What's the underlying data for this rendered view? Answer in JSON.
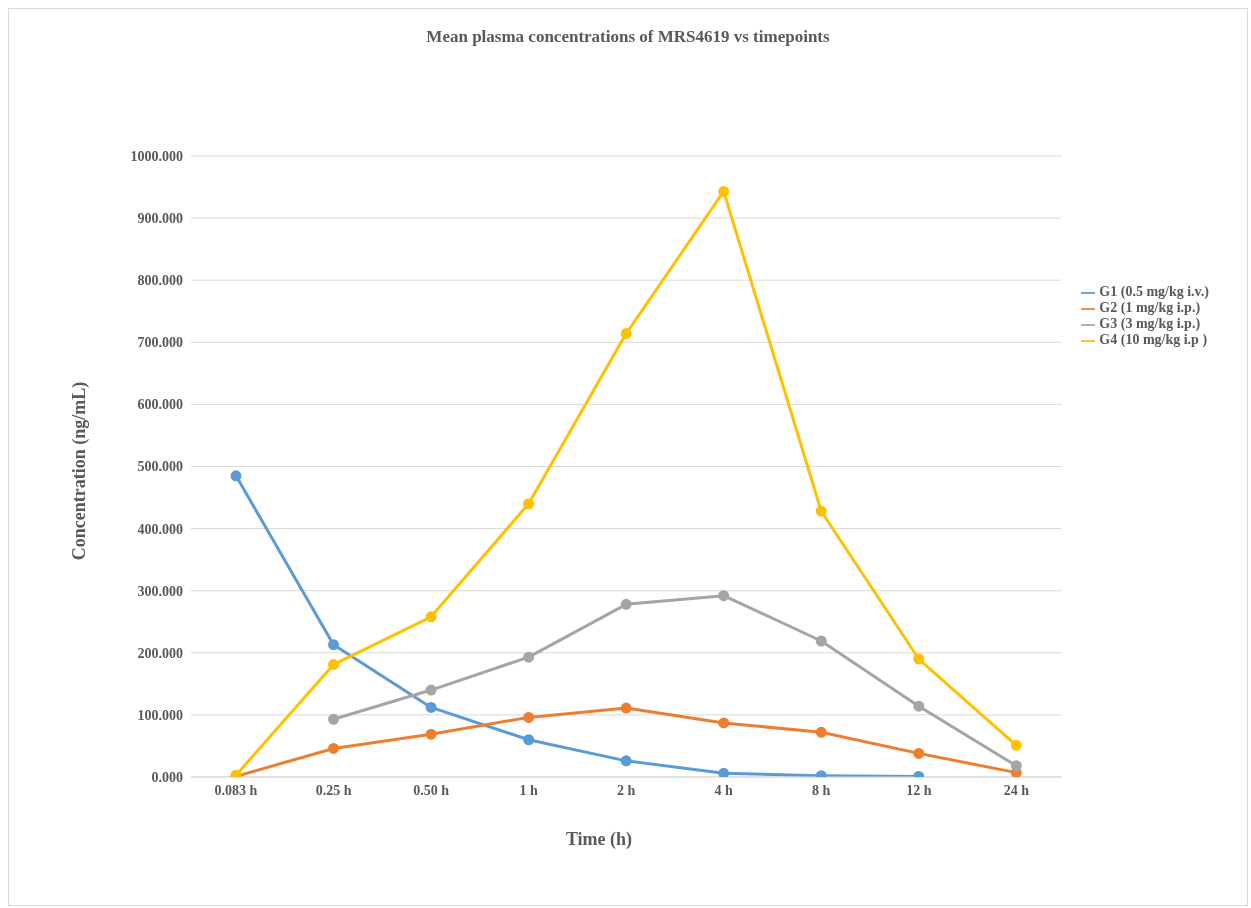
{
  "chart_data": {
    "type": "line",
    "title": "Mean plasma concentrations of MRS4619 vs timepoints",
    "xlabel": "Time (h)",
    "ylabel": "Concentration (ng/mL)",
    "categories": [
      "0.083 h",
      "0.25 h",
      "0.50 h",
      "1 h",
      "2 h",
      "4 h",
      "8 h",
      "12 h",
      "24 h"
    ],
    "series": [
      {
        "name": "G1 (0.5 mg/kg i.v.)",
        "color": "#5b9bd5",
        "values": [
          485,
          213,
          112,
          60,
          26,
          6,
          2,
          1,
          null
        ]
      },
      {
        "name": "G2 (1 mg/kg i.p.)",
        "color": "#ed7d31",
        "values": [
          1,
          46,
          69,
          96,
          111,
          87,
          72,
          38,
          7
        ]
      },
      {
        "name": "G3 (3 mg/kg i.p.)",
        "color": "#a5a5a5",
        "values": [
          null,
          93,
          140,
          193,
          278,
          292,
          219,
          114,
          18
        ]
      },
      {
        "name": "G4 (10 mg/kg i.p )",
        "color": "#ffc000",
        "values": [
          3,
          181,
          258,
          440,
          714,
          943,
          428,
          190,
          51
        ]
      }
    ],
    "ylim": [
      0,
      1000
    ],
    "yticks": [
      {
        "value": 0,
        "label": "0.000"
      },
      {
        "value": 100,
        "label": "100.000"
      },
      {
        "value": 200,
        "label": "200.000"
      },
      {
        "value": 300,
        "label": "300.000"
      },
      {
        "value": 400,
        "label": "400.000"
      },
      {
        "value": 500,
        "label": "500.000"
      },
      {
        "value": 600,
        "label": "600.000"
      },
      {
        "value": 700,
        "label": "700.000"
      },
      {
        "value": 800,
        "label": "800.000"
      },
      {
        "value": 900,
        "label": "900.000"
      },
      {
        "value": 1000,
        "label": "1000.000"
      }
    ],
    "grid": "y",
    "legend": "right",
    "marker": "circle",
    "line_style": "solid"
  }
}
